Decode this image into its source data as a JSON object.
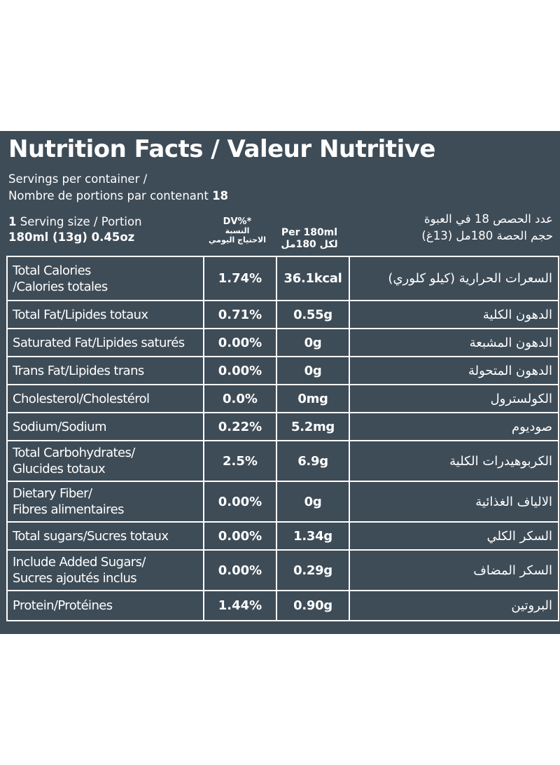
{
  "title": "Nutrition Facts / Valeur Nutritive",
  "servings": {
    "line1": "Servings per container /",
    "line2_text": "Nombre de portions par contenant ",
    "line2_count": "18"
  },
  "serving_size": {
    "line1_num": "1",
    "line1_text": " Serving size / Portion",
    "line2": "180ml (13g) 0.45oz"
  },
  "headers": {
    "dv": "DV%*",
    "dv_ar1": "النسبة",
    "dv_ar2": "الاحتياج اليومي",
    "per": "Per 180ml",
    "per_ar": "لكل 180مل"
  },
  "arabic_header": {
    "line1": "عدد الحصص 18 في العبوة",
    "line2": "حجم الحصة 180مل (13غ)"
  },
  "rows": [
    {
      "name1": "Total Calories",
      "name2": "/Calories totales",
      "dv": "1.74%",
      "amount": "36.1kcal",
      "ar": "السعرات الحرارية (كيلو كلوري)"
    },
    {
      "name1": "Total Fat/Lipides totaux",
      "name2": "",
      "dv": "0.71%",
      "amount": "0.55g",
      "ar": "الدهون الكلية"
    },
    {
      "name1": "Saturated Fat/Lipides saturés",
      "name2": "",
      "dv": "0.00%",
      "amount": "0g",
      "ar": "الدهون المشبعة"
    },
    {
      "name1": "Trans Fat/Lipides trans",
      "name2": "",
      "dv": "0.00%",
      "amount": "0g",
      "ar": "الدهون المتحولة"
    },
    {
      "name1": "Cholesterol/Cholestérol",
      "name2": "",
      "dv": "0.0%",
      "amount": "0mg",
      "ar": "الكولسترول"
    },
    {
      "name1": "Sodium/Sodium",
      "name2": "",
      "dv": "0.22%",
      "amount": "5.2mg",
      "ar": "صوديوم"
    },
    {
      "name1": "Total Carbohydrates/",
      "name2": "Glucides totaux",
      "dv": "2.5%",
      "amount": "6.9g",
      "ar": "الكربوهيدرات الكلية"
    },
    {
      "name1": "Dietary Fiber/",
      "name2": "Fibres alimentaires",
      "dv": "0.00%",
      "amount": "0g",
      "ar": "الالياف الغذائية"
    },
    {
      "name1": "Total sugars/Sucres totaux",
      "name2": "",
      "dv": "0.00%",
      "amount": "1.34g",
      "ar": "السكر الكلي"
    },
    {
      "name1": "Include Added Sugars/",
      "name2": "Sucres ajoutés inclus",
      "dv": "0.00%",
      "amount": "0.29g",
      "ar": "السكر المضاف"
    },
    {
      "name1": "Protein/Protéines",
      "name2": "",
      "dv": "1.44%",
      "amount": "0.90g",
      "ar": "البروتين"
    }
  ],
  "colors": {
    "panel": "#3e4c57",
    "text": "#ffffff"
  }
}
